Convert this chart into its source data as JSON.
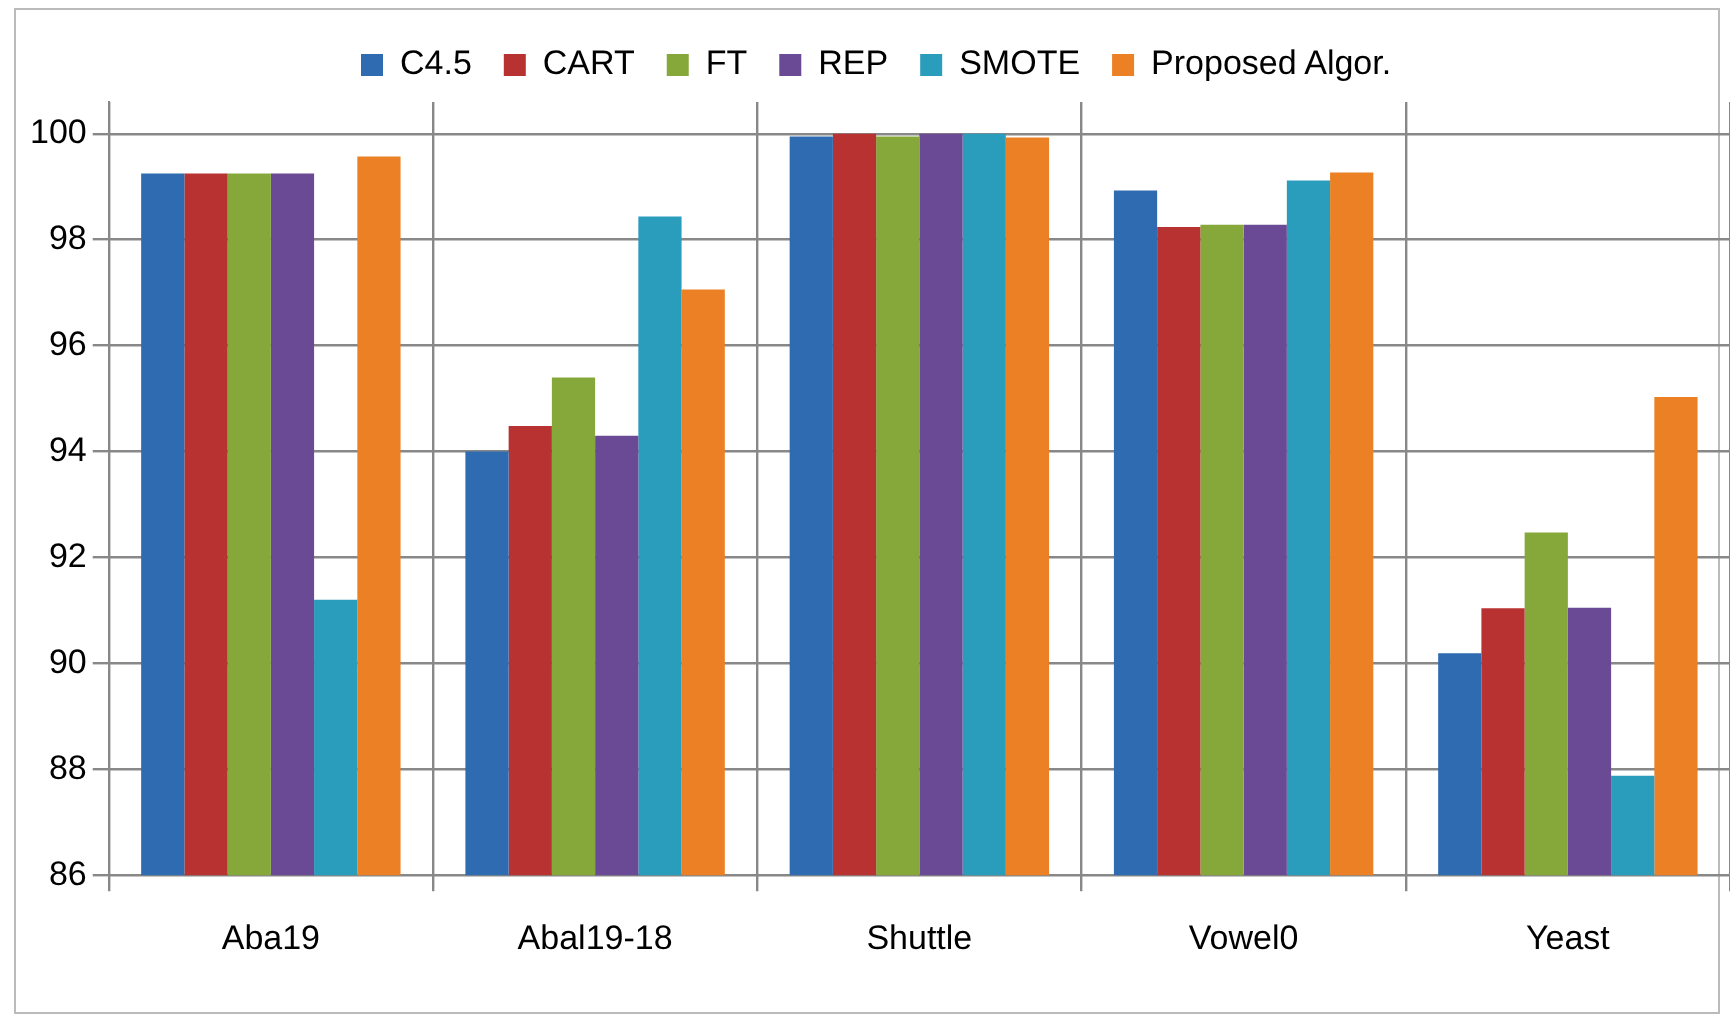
{
  "chart_data": {
    "type": "bar",
    "categories": [
      "Aba19",
      "Abal19-18",
      "Shuttle",
      "Vowel0",
      "Yeast"
    ],
    "series": [
      {
        "name": "C4.5",
        "color": "#2e6bb0",
        "values": [
          99.25,
          94.0,
          99.95,
          98.93,
          90.19
        ]
      },
      {
        "name": "CART",
        "color": "#b83232",
        "values": [
          99.25,
          94.48,
          100,
          98.24,
          91.04
        ]
      },
      {
        "name": "FT",
        "color": "#86a83a",
        "values": [
          99.25,
          95.4,
          99.95,
          98.28,
          92.47
        ]
      },
      {
        "name": "REP",
        "color": "#6a4a94",
        "values": [
          99.25,
          94.3,
          100,
          98.28,
          91.05
        ]
      },
      {
        "name": "SMOTE",
        "color": "#2a9cbc",
        "values": [
          91.2,
          98.44,
          100,
          99.12,
          87.88
        ]
      },
      {
        "name": "Proposed Algor.",
        "color": "#ec8024",
        "values": [
          99.57,
          97.06,
          99.93,
          99.27,
          95.03
        ]
      }
    ],
    "ylim": [
      86,
      100.6
    ],
    "yticks": [
      86,
      88,
      90,
      92,
      94,
      96,
      98,
      100
    ],
    "grid": true,
    "legend": "top"
  }
}
